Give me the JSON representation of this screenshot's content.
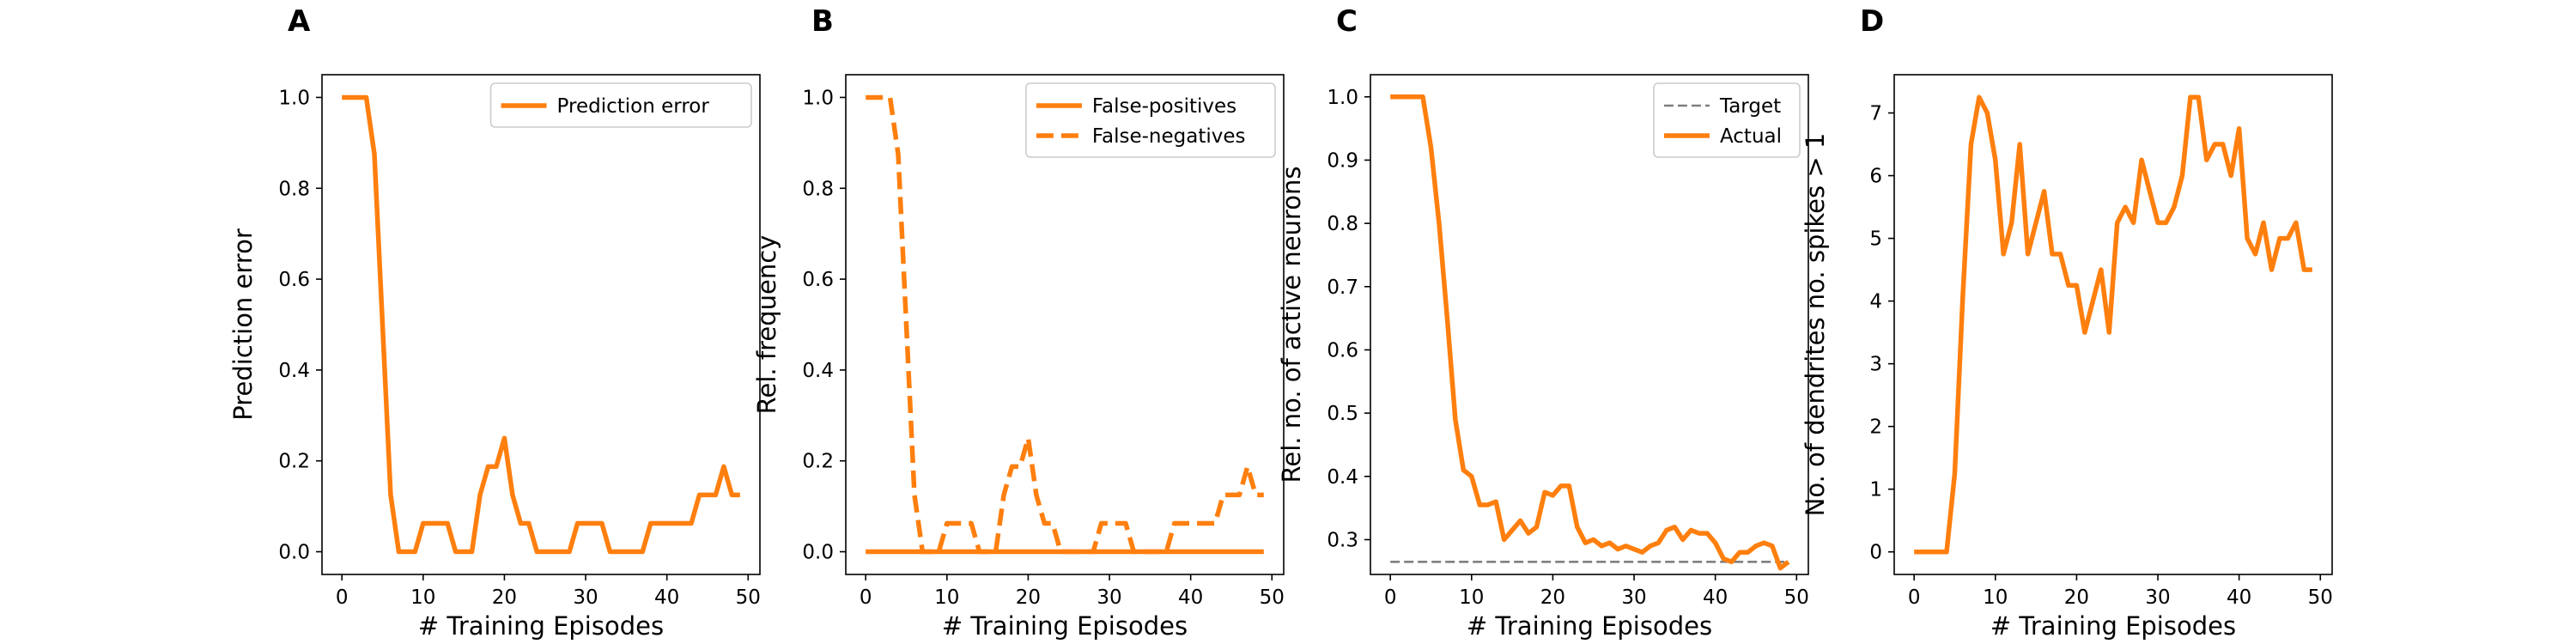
{
  "chart_data": [
    {
      "type": "line",
      "panel": "A",
      "x_label": "# Training Episodes",
      "y_label": "Prediction error",
      "x": [
        0,
        1,
        2,
        3,
        4,
        5,
        6,
        7,
        8,
        9,
        10,
        11,
        12,
        13,
        14,
        15,
        16,
        17,
        18,
        19,
        20,
        21,
        22,
        23,
        24,
        25,
        26,
        27,
        28,
        29,
        30,
        31,
        32,
        33,
        34,
        35,
        36,
        37,
        38,
        39,
        40,
        41,
        42,
        43,
        44,
        45,
        46,
        47,
        48,
        49
      ],
      "series": [
        {
          "name": "Prediction error",
          "color": "#ff7f0e",
          "style": "solid",
          "values": [
            1,
            1,
            1,
            1,
            0.875,
            0.5,
            0.125,
            0,
            0,
            0,
            0.0625,
            0.0625,
            0.0625,
            0.0625,
            0,
            0,
            0,
            0.125,
            0.1875,
            0.1875,
            0.25,
            0.125,
            0.0625,
            0.0625,
            0,
            0,
            0,
            0,
            0,
            0.0625,
            0.0625,
            0.0625,
            0.0625,
            0,
            0,
            0,
            0,
            0,
            0.0625,
            0.0625,
            0.0625,
            0.0625,
            0.0625,
            0.0625,
            0.125,
            0.125,
            0.125,
            0.1875,
            0.125,
            0.125
          ]
        }
      ],
      "xlim": [
        -2.45,
        51.45
      ],
      "xticks": [
        0,
        10,
        20,
        30,
        40,
        50
      ],
      "ylim": [
        -0.05,
        1.05
      ],
      "yticks": [
        {
          "value": 0,
          "label": "0.0"
        },
        {
          "value": 0.2,
          "label": "0.2"
        },
        {
          "value": 0.4,
          "label": "0.4"
        },
        {
          "value": 0.6,
          "label": "0.6"
        },
        {
          "value": 0.8,
          "label": "0.8"
        },
        {
          "value": 1,
          "label": "1.0"
        }
      ],
      "legend": "upper right"
    },
    {
      "type": "line",
      "panel": "B",
      "x_label": "# Training Episodes",
      "y_label": "Rel. frequency",
      "x": [
        0,
        1,
        2,
        3,
        4,
        5,
        6,
        7,
        8,
        9,
        10,
        11,
        12,
        13,
        14,
        15,
        16,
        17,
        18,
        19,
        20,
        21,
        22,
        23,
        24,
        25,
        26,
        27,
        28,
        29,
        30,
        31,
        32,
        33,
        34,
        35,
        36,
        37,
        38,
        39,
        40,
        41,
        42,
        43,
        44,
        45,
        46,
        47,
        48,
        49
      ],
      "series": [
        {
          "name": "False-positives",
          "color": "#ff7f0e",
          "style": "solid",
          "values": [
            0,
            0,
            0,
            0,
            0,
            0,
            0,
            0,
            0,
            0,
            0,
            0,
            0,
            0,
            0,
            0,
            0,
            0,
            0,
            0,
            0,
            0,
            0,
            0,
            0,
            0,
            0,
            0,
            0,
            0,
            0,
            0,
            0,
            0,
            0,
            0,
            0,
            0,
            0,
            0,
            0,
            0,
            0,
            0,
            0,
            0,
            0,
            0,
            0,
            0
          ]
        },
        {
          "name": "False-negatives",
          "color": "#ff7f0e",
          "style": "dashed",
          "values": [
            1,
            1,
            1,
            1,
            0.875,
            0.5,
            0.125,
            0,
            0,
            0,
            0.0625,
            0.0625,
            0.0625,
            0.0625,
            0,
            0,
            0,
            0.125,
            0.1875,
            0.1875,
            0.25,
            0.125,
            0.0625,
            0.0625,
            0,
            0,
            0,
            0,
            0,
            0.0625,
            0.0625,
            0.0625,
            0.0625,
            0,
            0,
            0,
            0,
            0,
            0.0625,
            0.0625,
            0.0625,
            0.0625,
            0.0625,
            0.0625,
            0.125,
            0.125,
            0.125,
            0.1875,
            0.125,
            0.125
          ]
        }
      ],
      "xlim": [
        -2.45,
        51.45
      ],
      "xticks": [
        0,
        10,
        20,
        30,
        40,
        50
      ],
      "ylim": [
        -0.05,
        1.05
      ],
      "yticks": [
        {
          "value": 0,
          "label": "0.0"
        },
        {
          "value": 0.2,
          "label": "0.2"
        },
        {
          "value": 0.4,
          "label": "0.4"
        },
        {
          "value": 0.6,
          "label": "0.6"
        },
        {
          "value": 0.8,
          "label": "0.8"
        },
        {
          "value": 1,
          "label": "1.0"
        }
      ],
      "legend": "upper right"
    },
    {
      "type": "line",
      "panel": "C",
      "x_label": "# Training Episodes",
      "y_label": "Rel. no. of active neurons",
      "x": [
        0,
        1,
        2,
        3,
        4,
        5,
        6,
        7,
        8,
        9,
        10,
        11,
        12,
        13,
        14,
        15,
        16,
        17,
        18,
        19,
        20,
        21,
        22,
        23,
        24,
        25,
        26,
        27,
        28,
        29,
        30,
        31,
        32,
        33,
        34,
        35,
        36,
        37,
        38,
        39,
        40,
        41,
        42,
        43,
        44,
        45,
        46,
        47,
        48,
        49
      ],
      "series": [
        {
          "name": "Target",
          "color": "#7f7f7f",
          "style": "dashed",
          "values": [
            0.265,
            0.265,
            0.265,
            0.265,
            0.265,
            0.265,
            0.265,
            0.265,
            0.265,
            0.265,
            0.265,
            0.265,
            0.265,
            0.265,
            0.265,
            0.265,
            0.265,
            0.265,
            0.265,
            0.265,
            0.265,
            0.265,
            0.265,
            0.265,
            0.265,
            0.265,
            0.265,
            0.265,
            0.265,
            0.265,
            0.265,
            0.265,
            0.265,
            0.265,
            0.265,
            0.265,
            0.265,
            0.265,
            0.265,
            0.265,
            0.265,
            0.265,
            0.265,
            0.265,
            0.265,
            0.265,
            0.265,
            0.265,
            0.265,
            0.265
          ]
        },
        {
          "name": "Actual",
          "color": "#ff7f0e",
          "style": "solid",
          "values": [
            1,
            1,
            1,
            1,
            1,
            0.92,
            0.8,
            0.65,
            0.49,
            0.41,
            0.4,
            0.355,
            0.355,
            0.36,
            0.3,
            0.315,
            0.33,
            0.31,
            0.32,
            0.375,
            0.37,
            0.385,
            0.385,
            0.32,
            0.295,
            0.3,
            0.29,
            0.295,
            0.285,
            0.29,
            0.285,
            0.28,
            0.29,
            0.295,
            0.315,
            0.32,
            0.3,
            0.315,
            0.31,
            0.31,
            0.295,
            0.27,
            0.265,
            0.28,
            0.28,
            0.29,
            0.295,
            0.29,
            0.255,
            0.265
          ]
        }
      ],
      "xlim": [
        -2.45,
        51.45
      ],
      "xticks": [
        0,
        10,
        20,
        30,
        40,
        50
      ],
      "ylim": [
        0.245,
        1.035
      ],
      "yticks": [
        0.3,
        0.4,
        0.5,
        0.6,
        0.7,
        0.8,
        0.9,
        {
          "value": 1,
          "label": "1.0"
        }
      ],
      "legend": "upper right"
    },
    {
      "type": "line",
      "panel": "D",
      "x_label": "# Training Episodes",
      "y_label": "No. of dendrites no. spikes > 1",
      "x": [
        0,
        1,
        2,
        3,
        4,
        5,
        6,
        7,
        8,
        9,
        10,
        11,
        12,
        13,
        14,
        15,
        16,
        17,
        18,
        19,
        20,
        21,
        22,
        23,
        24,
        25,
        26,
        27,
        28,
        29,
        30,
        31,
        32,
        33,
        34,
        35,
        36,
        37,
        38,
        39,
        40,
        41,
        42,
        43,
        44,
        45,
        46,
        47,
        48,
        49
      ],
      "series": [
        {
          "name": null,
          "color": "#ff7f0e",
          "style": "solid",
          "values": [
            0,
            0,
            0,
            0,
            0,
            1.25,
            4.1,
            6.5,
            7.25,
            7,
            6.25,
            4.75,
            5.25,
            6.5,
            4.75,
            5.25,
            5.75,
            4.75,
            4.75,
            4.25,
            4.25,
            3.5,
            4,
            4.5,
            3.5,
            5.25,
            5.5,
            5.25,
            6.25,
            5.75,
            5.25,
            5.25,
            5.5,
            6,
            7.25,
            7.25,
            6.25,
            6.5,
            6.5,
            6,
            6.75,
            5,
            4.75,
            5.25,
            4.5,
            5,
            5,
            5.25,
            4.5,
            4.5
          ]
        }
      ],
      "xlim": [
        -2.45,
        51.45
      ],
      "xticks": [
        0,
        10,
        20,
        30,
        40,
        50
      ],
      "ylim": [
        -0.36,
        7.61
      ],
      "yticks": [
        0,
        1,
        2,
        3,
        4,
        5,
        6,
        7
      ],
      "legend": null
    }
  ]
}
